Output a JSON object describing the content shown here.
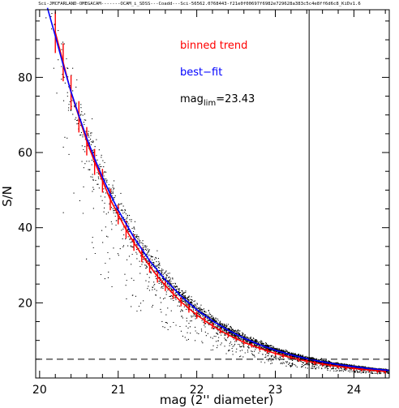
{
  "header": {
    "text": "Sci-JMCFARLAND-OMEGACAM-------OCAM_i_SDSS---Coadd---Sci-56562.0768443-f21e0f00697f6982e729628a383c5c4e8ff6d6c8_KiDv1.6"
  },
  "chart_data": {
    "type": "scatter",
    "xlabel": "mag (2'' diameter)",
    "ylabel": "S/N",
    "xlim": [
      19.95,
      24.45
    ],
    "ylim": [
      0,
      98
    ],
    "xticks": [
      20,
      21,
      22,
      23,
      24
    ],
    "yticks": [
      20,
      40,
      60,
      80
    ],
    "grid": false,
    "legend_position": "top-right",
    "colors": {
      "points": "#000000",
      "binned_trend": "#ff0000",
      "best_fit": "#0000ff"
    },
    "series": [
      {
        "name": "binned trend",
        "x": [
          20.2,
          20.3,
          20.4,
          20.5,
          20.6,
          20.7,
          20.8,
          20.9,
          21.0,
          21.1,
          21.2,
          21.3,
          21.4,
          21.5,
          21.6,
          21.7,
          21.8,
          21.9,
          22.0,
          22.1,
          22.2,
          22.3,
          22.4,
          22.5,
          22.6,
          22.7,
          22.8,
          22.9,
          23.0,
          23.1,
          23.2,
          23.3,
          23.4,
          23.5,
          23.6,
          23.7,
          23.8,
          23.9,
          24.0,
          24.1,
          24.2,
          24.3,
          24.4
        ],
        "y": [
          92,
          84,
          76,
          69.5,
          63,
          57.5,
          52.5,
          47.5,
          43.5,
          39.5,
          36,
          32.8,
          29.8,
          27,
          24.6,
          22.4,
          20.3,
          18.5,
          16.8,
          15.3,
          13.9,
          12.6,
          11.5,
          10.5,
          9.5,
          8.7,
          7.9,
          7.2,
          6.55,
          5.95,
          5.42,
          4.93,
          4.48,
          4.08,
          3.72,
          3.38,
          3.08,
          2.8,
          2.55,
          2.32,
          2.11,
          1.92,
          1.75
        ]
      },
      {
        "name": "best-fit",
        "x": [
          20.1,
          20.2,
          20.3,
          20.4,
          20.5,
          20.6,
          20.7,
          20.8,
          20.9,
          21.0,
          21.2,
          21.4,
          21.6,
          21.8,
          22.0,
          22.2,
          22.4,
          22.6,
          22.8,
          23.0,
          23.2,
          23.4,
          23.6,
          23.8,
          24.0,
          24.2,
          24.45
        ],
        "y": [
          98.5,
          91,
          83.3,
          76.2,
          69.8,
          63.8,
          58.4,
          53.4,
          48.9,
          44.7,
          37.4,
          31.2,
          26.1,
          21.8,
          18.2,
          15.2,
          12.7,
          10.6,
          8.85,
          7.38,
          6.16,
          5.14,
          4.29,
          3.58,
          2.99,
          2.5,
          2.0
        ]
      }
    ],
    "reference_lines": {
      "vertical_x": 23.43,
      "horizontal_y": 5
    },
    "legend": {
      "binned_label": "binned trend",
      "fit_label": "best−fit",
      "maglim_prefix": "mag",
      "maglim_sub": "lim",
      "maglim_value": "=23.43"
    }
  }
}
